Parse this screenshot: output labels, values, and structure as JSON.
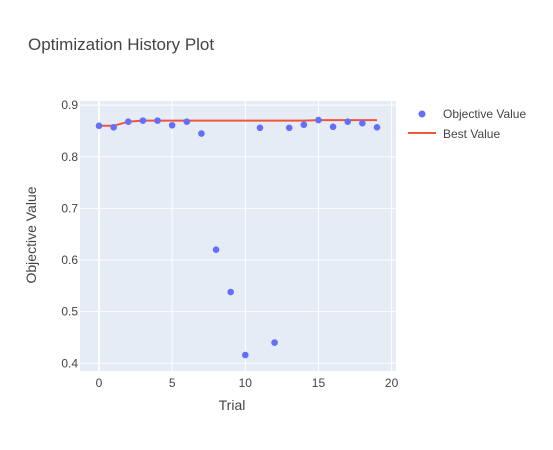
{
  "chart_data": {
    "type": "scatter",
    "title": "Optimization History Plot",
    "xlabel": "Trial",
    "ylabel": "Objective Value",
    "xlim": [
      -1.3,
      20.3
    ],
    "ylim": [
      0.385,
      0.908
    ],
    "xticks": [
      0,
      5,
      10,
      15,
      20
    ],
    "yticks": [
      0.4,
      0.5,
      0.6,
      0.7,
      0.8,
      0.9
    ],
    "grid": true,
    "legend_position": "top-right",
    "series": [
      {
        "name": "Objective Value",
        "kind": "markers",
        "color": "#636efa",
        "x": [
          0,
          1,
          2,
          3,
          4,
          5,
          6,
          7,
          8,
          9,
          10,
          11,
          12,
          13,
          14,
          15,
          16,
          17,
          18,
          19
        ],
        "y": [
          0.86,
          0.857,
          0.868,
          0.87,
          0.87,
          0.861,
          0.868,
          0.845,
          0.62,
          0.538,
          0.416,
          0.856,
          0.44,
          0.856,
          0.862,
          0.871,
          0.858,
          0.868,
          0.865,
          0.857
        ]
      },
      {
        "name": "Best Value",
        "kind": "line",
        "color": "#ef553b",
        "x": [
          0,
          1,
          2,
          3,
          4,
          5,
          6,
          7,
          8,
          9,
          10,
          11,
          12,
          13,
          14,
          15,
          16,
          17,
          18,
          19
        ],
        "y": [
          0.86,
          0.86,
          0.868,
          0.87,
          0.87,
          0.87,
          0.87,
          0.87,
          0.87,
          0.87,
          0.87,
          0.87,
          0.87,
          0.87,
          0.87,
          0.871,
          0.871,
          0.871,
          0.871,
          0.871
        ]
      }
    ]
  }
}
